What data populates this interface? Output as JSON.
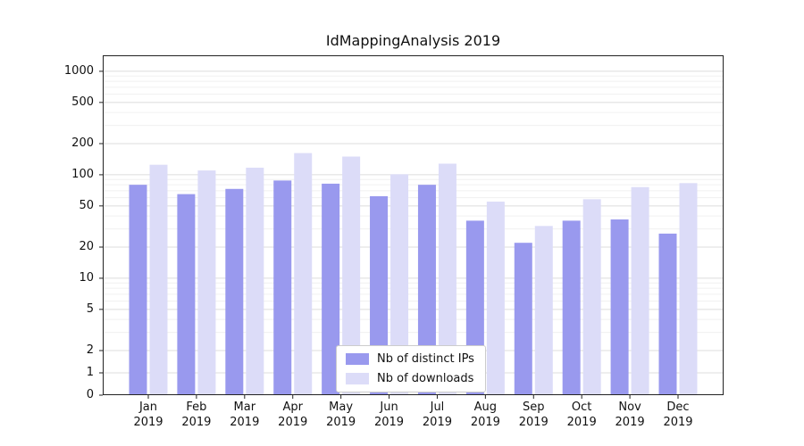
{
  "title": "IdMappingAnalysis 2019",
  "chart_data": {
    "type": "bar",
    "title": "IdMappingAnalysis 2019",
    "categories": [
      "Jan",
      "Feb",
      "Mar",
      "Apr",
      "May",
      "Jun",
      "Jul",
      "Aug",
      "Sep",
      "Oct",
      "Nov",
      "Dec"
    ],
    "year": "2019",
    "series": [
      {
        "name": "Nb of distinct IPs",
        "color": "#9999ee",
        "values": [
          80,
          65,
          73,
          88,
          82,
          62,
          80,
          36,
          22,
          36,
          37,
          27
        ]
      },
      {
        "name": "Nb of downloads",
        "color": "#dcdcf8",
        "values": [
          125,
          110,
          117,
          162,
          150,
          101,
          128,
          55,
          32,
          58,
          76,
          83
        ]
      }
    ],
    "yscale": "symlog",
    "yticks": [
      0,
      1,
      2,
      5,
      10,
      20,
      50,
      100,
      200,
      500,
      1000
    ],
    "minor_yticks": [
      3,
      4,
      6,
      7,
      8,
      9,
      30,
      40,
      60,
      70,
      80,
      90,
      300,
      400,
      600,
      700,
      800,
      900
    ],
    "ylim": [
      0,
      1000
    ],
    "grid": "horizontal",
    "legend_position": "lower center",
    "colors": {
      "major_gridline": "#dcdcdc",
      "minor_gridline": "#f0f0f0",
      "axis_border": "#222222"
    }
  }
}
